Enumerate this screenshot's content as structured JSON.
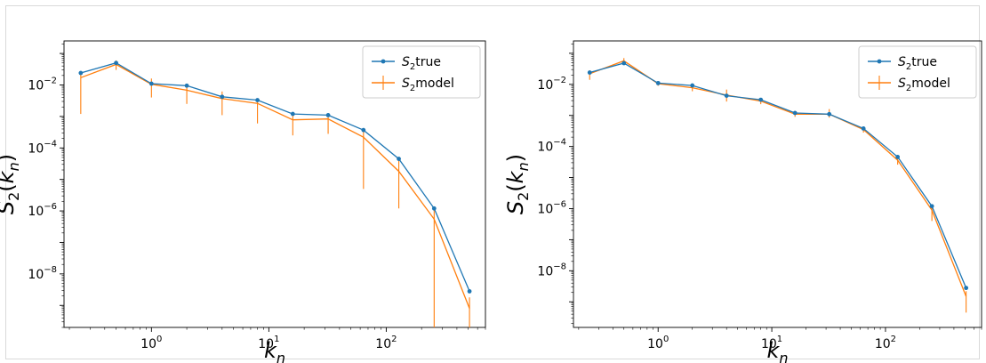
{
  "chart_data": [
    {
      "type": "line",
      "xscale": "log",
      "yscale": "log",
      "xlim": [
        0.18,
        700
      ],
      "ylim": [
        2e-10,
        0.25
      ],
      "xticks": [
        {
          "value": 1,
          "base": "10",
          "exp": "0"
        },
        {
          "value": 10,
          "base": "10",
          "exp": "1"
        },
        {
          "value": 100,
          "base": "10",
          "exp": "2"
        }
      ],
      "yticks": [
        {
          "value": 1e-08,
          "base": "10",
          "exp": "−8"
        },
        {
          "value": 1e-06,
          "base": "10",
          "exp": "−6"
        },
        {
          "value": 0.0001,
          "base": "10",
          "exp": "−4"
        },
        {
          "value": 0.01,
          "base": "10",
          "exp": "−2"
        }
      ],
      "xlabel": {
        "base": "k",
        "sub": "n"
      },
      "ylabel": {
        "base": "S",
        "sub": "2",
        "arg": "k",
        "argsub": "n"
      },
      "legend_position": "top-right",
      "grid": false,
      "series": [
        {
          "name": {
            "base": "S",
            "sub": "2",
            "text": "true"
          },
          "color": "#1f77b4",
          "marker": true,
          "x": [
            0.25,
            0.5,
            1,
            2,
            4,
            8,
            16,
            32,
            64,
            128,
            256,
            512
          ],
          "y": [
            0.024,
            0.05,
            0.011,
            0.0095,
            0.0042,
            0.0033,
            0.0012,
            0.0011,
            0.00037,
            4.5e-05,
            1.2e-06,
            2.8e-09
          ]
        },
        {
          "name": {
            "base": "S",
            "sub": "2",
            "text": "model"
          },
          "color": "#ff7f0e",
          "marker": false,
          "x": [
            0.25,
            0.5,
            1,
            2,
            4,
            8,
            16,
            32,
            64,
            128,
            256,
            512
          ],
          "y": [
            0.017,
            0.045,
            0.0105,
            0.0068,
            0.0037,
            0.0026,
            0.00078,
            0.00083,
            0.00022,
            1.8e-05,
            5.5e-07,
            8e-10
          ],
          "err_low": [
            0.0012,
            0.03,
            0.004,
            0.0025,
            0.0011,
            0.0006,
            0.00025,
            0.00028,
            5e-06,
            1.2e-06,
            2e-10,
            2e-10
          ],
          "err_high": [
            0.025,
            0.06,
            0.016,
            0.009,
            0.0062,
            0.0036,
            0.0012,
            0.0012,
            0.00035,
            4.5e-05,
            1.2e-06,
            1.8e-09
          ]
        }
      ]
    },
    {
      "type": "line",
      "xscale": "log",
      "yscale": "log",
      "xlim": [
        0.18,
        700
      ],
      "ylim": [
        1.5e-10,
        0.25
      ],
      "xticks": [
        {
          "value": 1,
          "base": "10",
          "exp": "0"
        },
        {
          "value": 10,
          "base": "10",
          "exp": "1"
        },
        {
          "value": 100,
          "base": "10",
          "exp": "2"
        }
      ],
      "yticks": [
        {
          "value": 1e-08,
          "base": "10",
          "exp": "−8"
        },
        {
          "value": 1e-06,
          "base": "10",
          "exp": "−6"
        },
        {
          "value": 0.0001,
          "base": "10",
          "exp": "−4"
        },
        {
          "value": 0.01,
          "base": "10",
          "exp": "−2"
        }
      ],
      "xlabel": {
        "base": "k",
        "sub": "n"
      },
      "ylabel": {
        "base": "S",
        "sub": "2",
        "arg": "k",
        "argsub": "n"
      },
      "legend_position": "top-right",
      "grid": false,
      "series": [
        {
          "name": {
            "base": "S",
            "sub": "2",
            "text": "true"
          },
          "color": "#1f77b4",
          "marker": true,
          "x": [
            0.25,
            0.5,
            1,
            2,
            4,
            8,
            16,
            32,
            64,
            128,
            256,
            512
          ],
          "y": [
            0.024,
            0.048,
            0.011,
            0.0092,
            0.0043,
            0.0032,
            0.0012,
            0.0011,
            0.00038,
            4.6e-05,
            1.2e-06,
            2.8e-09
          ]
        },
        {
          "name": {
            "base": "S",
            "sub": "2",
            "text": "model"
          },
          "color": "#ff7f0e",
          "marker": false,
          "x": [
            0.25,
            0.5,
            1,
            2,
            4,
            8,
            16,
            32,
            64,
            128,
            256,
            512
          ],
          "y": [
            0.022,
            0.057,
            0.0105,
            0.0078,
            0.0045,
            0.0029,
            0.0011,
            0.0011,
            0.00035,
            3.6e-05,
            9e-07,
            1.5e-09
          ],
          "err_low": [
            0.014,
            0.045,
            0.009,
            0.006,
            0.0028,
            0.0023,
            0.0009,
            0.00085,
            0.00028,
            2.6e-05,
            4e-07,
            4.5e-10
          ],
          "err_high": [
            0.028,
            0.07,
            0.012,
            0.0095,
            0.0068,
            0.0035,
            0.0014,
            0.0016,
            0.00042,
            4.4e-05,
            1.2e-06,
            2.2e-09
          ]
        }
      ]
    }
  ]
}
